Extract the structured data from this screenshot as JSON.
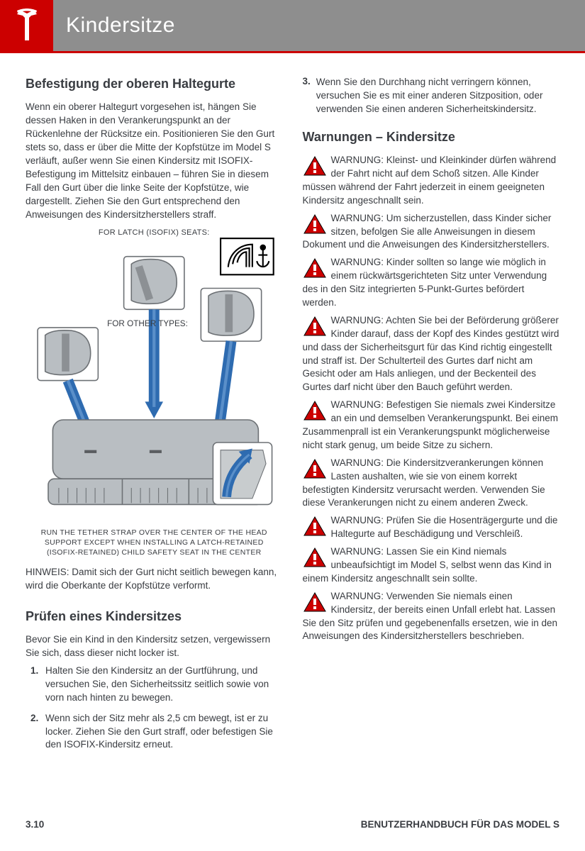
{
  "header": {
    "title": "Kindersitze"
  },
  "left": {
    "h1": "Befestigung der oberen Haltegurte",
    "p1": "Wenn ein oberer Haltegurt vorgesehen ist, hängen Sie dessen Haken in den Verankerungspunkt an der Rückenlehne der Rücksitze ein. Positionieren Sie den Gurt stets so, dass er über die Mitte der Kopfstütze im Model S verläuft, außer wenn Sie einen Kindersitz mit ISOFIX-Befestigung im Mittelsitz einbauen – führen Sie in diesem Fall den Gurt über die linke Seite der Kopfstütze, wie dargestellt. Ziehen Sie den Gurt entsprechend den Anweisungen des Kindersitzherstellers straff.",
    "diagram": {
      "label_top": "FOR LATCH (ISOFIX) SEATS:",
      "label_mid": "FOR OTHER TYPES:",
      "caption": "RUN THE TETHER STRAP OVER THE CENTER OF THE HEAD SUPPORT EXCEPT WHEN INSTALLING A LATCH-RETAINED (ISOFIX-RETAINED) CHILD SAFETY SEAT IN THE CENTER",
      "colors": {
        "seat_fill": "#b9bec2",
        "seat_stroke": "#6d7175",
        "strap": "#8c9094",
        "pointer": "#2e6bb0",
        "pointer_light": "#5a8fc9",
        "anchor_box": "#ffffff",
        "anchor_stroke": "#000000"
      }
    },
    "note": "HINWEIS: Damit sich der Gurt nicht seitlich bewegen kann, wird die Oberkante der Kopfstütze verformt.",
    "h2": "Prüfen eines Kindersitzes",
    "p2": "Bevor Sie ein Kind in den Kindersitz setzen, vergewissern Sie sich, dass dieser nicht locker ist.",
    "steps": [
      "Halten Sie den Kindersitz an der Gurtführung, und versuchen Sie, den Sicherheitssitz seitlich sowie von vorn nach hinten zu bewegen.",
      "Wenn sich der Sitz mehr als 2,5 cm bewegt, ist er zu locker. Ziehen Sie den Gurt straff, oder befestigen Sie den ISOFIX-Kindersitz erneut."
    ]
  },
  "right": {
    "step3_num": "3.",
    "step3": "Wenn Sie den Durchhang nicht verringern können, versuchen Sie es mit einer anderen Sitzposition, oder verwenden Sie einen anderen Sicherheitskindersitz.",
    "h1": "Warnungen – Kindersitze",
    "warnings": [
      "WARNUNG: Kleinst- und Kleinkinder dürfen während der Fahrt nicht auf dem Schoß sitzen. Alle Kinder müssen während der Fahrt jederzeit in einem geeigneten Kindersitz angeschnallt sein.",
      "WARNUNG: Um sicherzustellen, dass Kinder sicher sitzen, befolgen Sie alle Anweisungen in diesem Dokument und die Anweisungen des Kindersitzherstellers.",
      "WARNUNG: Kinder sollten so lange wie möglich in einem rückwärtsgerichteten Sitz unter Verwendung des in den Sitz integrierten 5-Punkt-Gurtes befördert werden.",
      "WARNUNG: Achten Sie bei der Beförderung größerer Kinder darauf, dass der Kopf des Kindes gestützt wird und dass der Sicherheitsgurt für das Kind richtig eingestellt und straff ist. Der Schulterteil des Gurtes darf nicht am Gesicht oder am Hals anliegen, und der Beckenteil des Gurtes darf nicht über den Bauch geführt werden.",
      "WARNUNG: Befestigen Sie niemals zwei Kindersitze an ein und demselben Verankerungspunkt. Bei einem Zusammenprall ist ein Verankerungspunkt möglicherweise nicht stark genug, um beide Sitze zu sichern.",
      "WARNUNG: Die Kindersitzverankerungen können Lasten aushalten, wie sie von einem korrekt befestigten Kindersitz verursacht werden. Verwenden Sie diese Verankerungen nicht zu einem anderen Zweck.",
      "WARNUNG: Prüfen Sie die Hosenträgergurte und die Haltegurte auf Beschädigung und Verschleiß.",
      "WARNUNG: Lassen Sie ein Kind niemals unbeaufsichtigt im Model S, selbst wenn das Kind in einem Kindersitz angeschnallt sein sollte.",
      "WARNUNG: Verwenden Sie niemals einen Kindersitz, der bereits einen Unfall erlebt hat. Lassen Sie den Sitz prüfen und gegebenenfalls ersetzen, wie in den Anweisungen des Kindersitzherstellers beschrieben."
    ],
    "warning_color": "#cc0000"
  },
  "footer": {
    "page": "3.10",
    "manual": "BENUTZERHANDBUCH FÜR DAS MODEL S"
  }
}
